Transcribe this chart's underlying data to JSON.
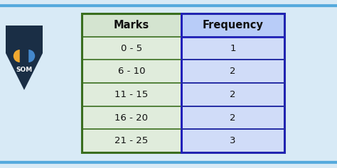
{
  "col_headers": [
    "Marks",
    "Frequency"
  ],
  "rows": [
    [
      "0 - 5",
      "1"
    ],
    [
      "6 - 10",
      "2"
    ],
    [
      "11 - 15",
      "2"
    ],
    [
      "16 - 20",
      "2"
    ],
    [
      "21 - 25",
      "3"
    ]
  ],
  "header_col1_bg": "#d4e4d0",
  "header_col2_bg": "#b8ccf8",
  "cell_col1_bg": "#e0ecdc",
  "cell_col2_bg": "#d0dcf8",
  "outer_border_color": "#3a6e1f",
  "inner_border_color": "#2020bb",
  "header_text_color": "#111111",
  "cell_text_color": "#111111",
  "fig_bg": "#d8eaf6",
  "logo_bg": "#1a2e45",
  "deco_line_color": "#55aadd",
  "font_size": 9.5,
  "header_font_size": 10.5
}
